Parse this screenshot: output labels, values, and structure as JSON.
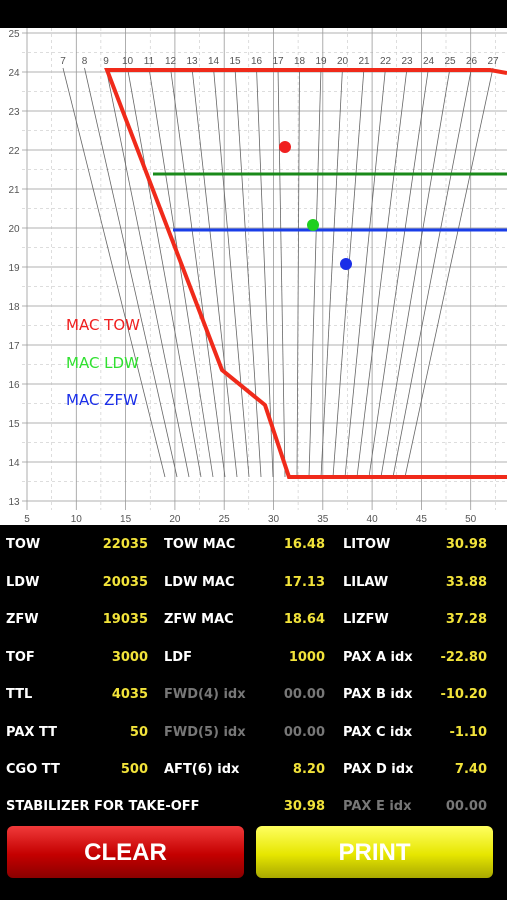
{
  "chart": {
    "y_labels": [
      25,
      24,
      23,
      22,
      21,
      20,
      19,
      18,
      17,
      16,
      15,
      14,
      13
    ],
    "x_labels": [
      5,
      10,
      15,
      20,
      25,
      30,
      35,
      40,
      45,
      50,
      5
    ],
    "mac_labels": [
      7,
      8,
      9,
      10,
      11,
      12,
      13,
      14,
      15,
      16,
      17,
      18,
      19,
      20,
      21,
      22,
      23,
      24,
      25,
      26,
      27
    ],
    "legend": [
      "MAC TOW",
      "MAC LDW",
      "MAC ZFW"
    ]
  },
  "table": {
    "rows": [
      [
        "TOW",
        "22035",
        "TOW MAC",
        "16.48",
        "LITOW",
        "30.98"
      ],
      [
        "LDW",
        "20035",
        "LDW MAC",
        "17.13",
        "LILAW",
        "33.88"
      ],
      [
        "ZFW",
        "19035",
        "ZFW MAC",
        "18.64",
        "LIZFW",
        "37.28"
      ],
      [
        "TOF",
        "3000",
        "LDF",
        "1000",
        "PAX A idx",
        "-22.80"
      ],
      [
        "TTL",
        "4035",
        "FWD(4) idx",
        "00.00",
        "PAX B idx",
        "-10.20"
      ],
      [
        "PAX TT",
        "50",
        "FWD(5) idx",
        "00.00",
        "PAX C idx",
        "-1.10"
      ],
      [
        "CGO TT",
        "500",
        "AFT(6) idx",
        "8.20",
        "PAX D idx",
        "7.40"
      ]
    ]
  },
  "stabilizer": {
    "label": "STABILIZER FOR TAKE-OFF",
    "value": "30.98",
    "extra_label": "PAX E idx",
    "extra_value": "00.00"
  },
  "buttons": {
    "clear": "CLEAR",
    "print": "PRINT"
  }
}
